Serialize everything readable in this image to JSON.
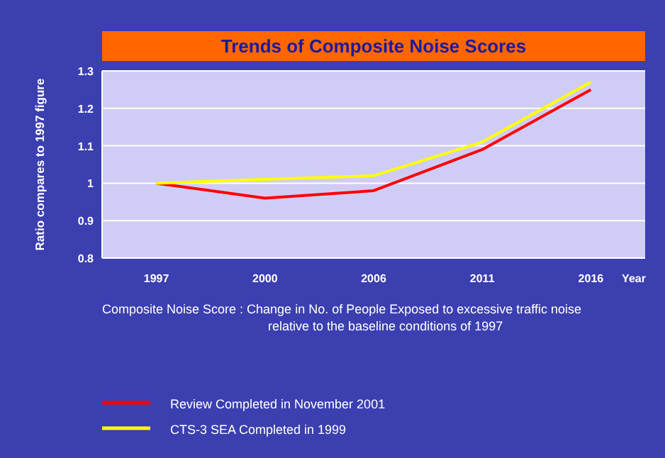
{
  "chart_data": {
    "type": "line",
    "title": "Trends of Composite Noise Scores",
    "xlabel": "Year",
    "ylabel": "Ratio compares to 1997 figure",
    "categories": [
      "1997",
      "2000",
      "2006",
      "2011",
      "2016"
    ],
    "series": [
      {
        "name": "Review Completed in November 2001",
        "color": "#ff0000",
        "values": [
          1,
          0.96,
          0.98,
          1.09,
          1.25
        ]
      },
      {
        "name": "CTS-3 SEA Completed in 1999",
        "color": "#ffff00",
        "values": [
          1,
          1.01,
          1.02,
          1.11,
          1.27
        ]
      }
    ],
    "ylim": [
      0.8,
      1.3
    ],
    "yticks": [
      0.8,
      0.9,
      1,
      1.1,
      1.2,
      1.3
    ],
    "grid": "y",
    "legend": "bottom",
    "marker": "none",
    "line_style": "solid",
    "annotations": [
      "Composite Noise Score : Change in No. of People Exposed to excessive traffic noise relative to the baseline conditions of 1997"
    ]
  }
}
